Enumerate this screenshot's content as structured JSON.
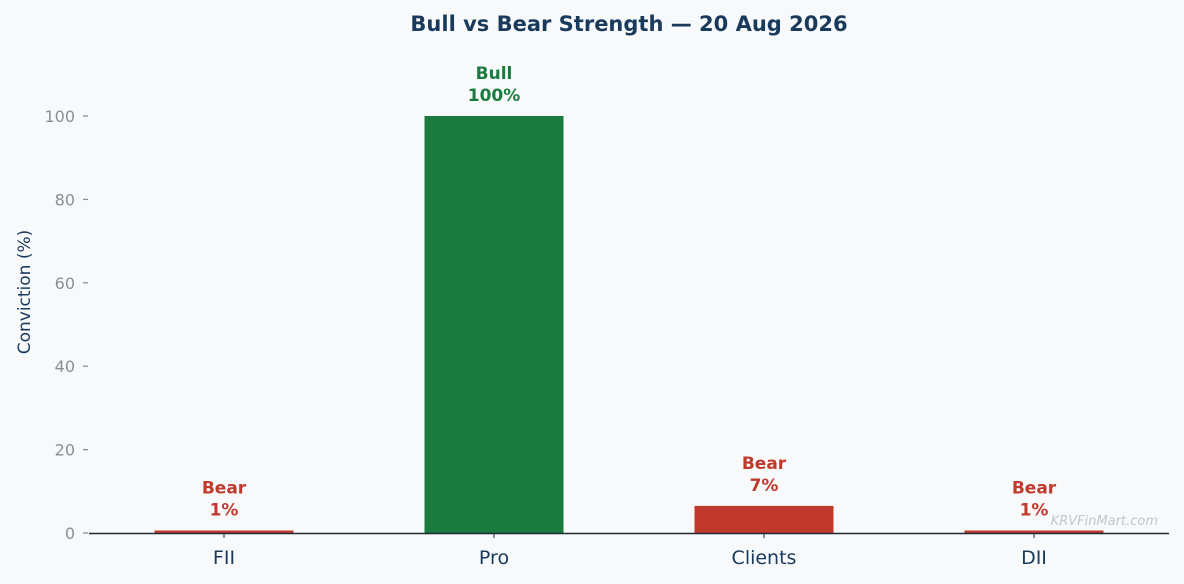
{
  "chart_data": {
    "type": "bar",
    "title": "Bull vs Bear Strength — 20 Aug 2026",
    "ylabel": "Conviction (%)",
    "xlabel": "",
    "ylim": [
      0,
      110
    ],
    "yticks": [
      0,
      20,
      40,
      60,
      80,
      100
    ],
    "grid": false,
    "categories": [
      "FII",
      "Pro",
      "Clients",
      "DII"
    ],
    "values": [
      0.6,
      100,
      6.5,
      0.6
    ],
    "sentiments": [
      "Bear",
      "Bull",
      "Bear",
      "Bear"
    ],
    "value_labels": [
      "1%",
      "100%",
      "7%",
      "1%"
    ],
    "colors": {
      "Bull": "#1b7a3e",
      "Bear": "#c0392b",
      "title": "#1a3a5c",
      "tick": "#8a8f96",
      "axis": "#1f2a36"
    },
    "watermark": "KRVFinMart.com"
  }
}
